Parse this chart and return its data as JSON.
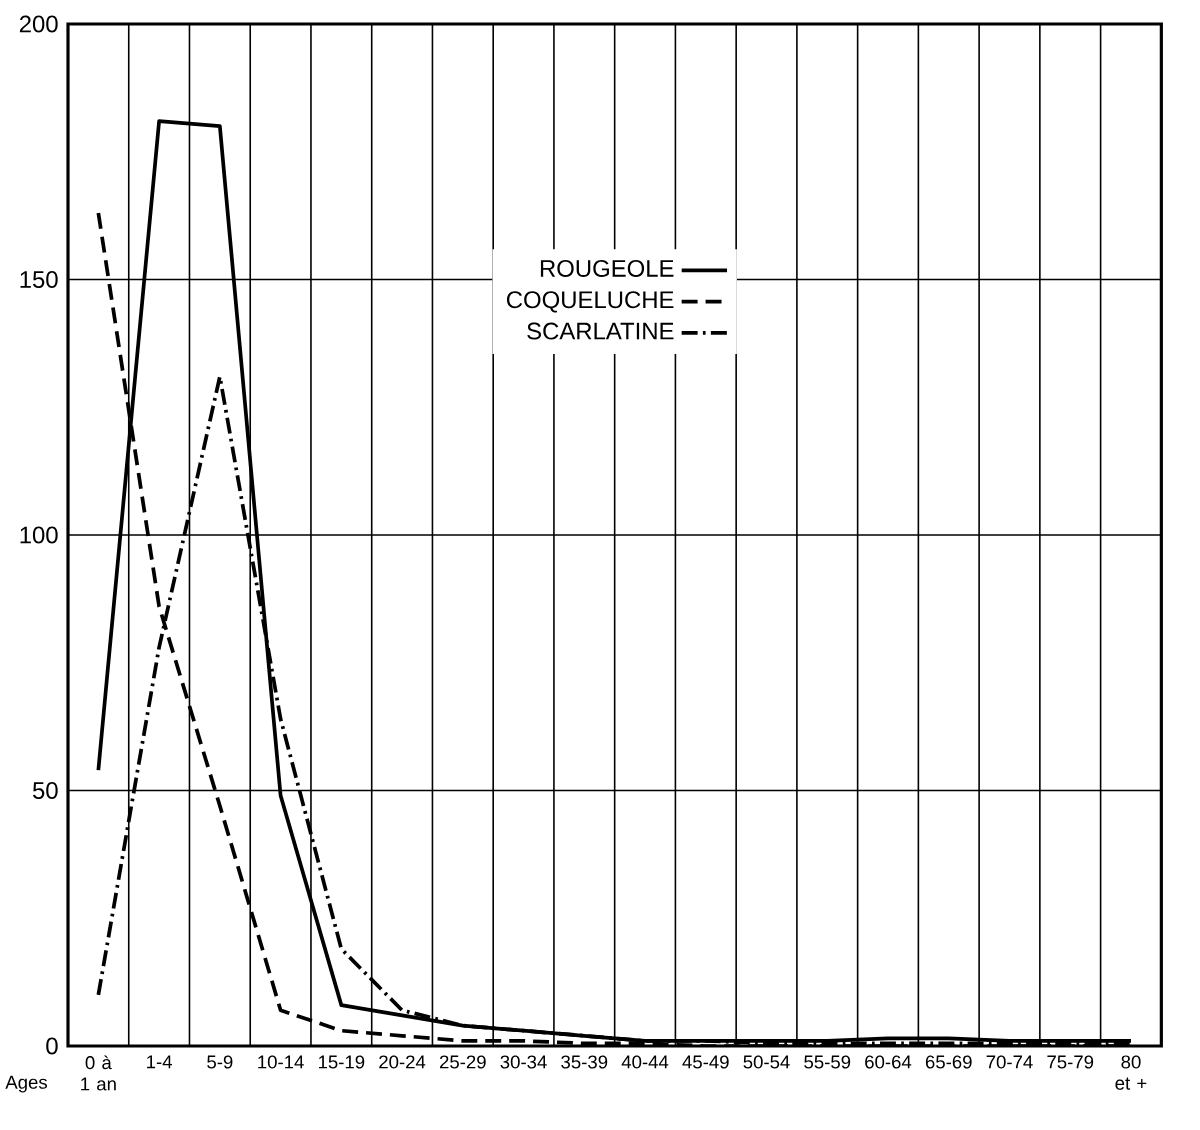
{
  "chart_data": {
    "type": "line",
    "xlabel": "Ages",
    "categories": [
      "0 à 1 an",
      "1-4",
      "5-9",
      "10-14",
      "15-19",
      "20-24",
      "25-29",
      "30-34",
      "35-39",
      "40-44",
      "45-49",
      "50-54",
      "55-59",
      "60-64",
      "65-69",
      "70-74",
      "75-79",
      "80 et +"
    ],
    "series": [
      {
        "name": "ROUGEOLE",
        "color": "#000000",
        "line_style": "solid",
        "values": [
          54,
          181,
          180,
          49,
          8,
          6,
          4,
          3,
          2,
          1,
          1,
          1,
          1,
          1.5,
          1.5,
          1,
          1,
          1
        ]
      },
      {
        "name": "COQUELUCHE",
        "color": "#000000",
        "line_style": "dashed",
        "values": [
          163,
          86,
          47,
          7,
          3,
          2,
          1,
          1,
          0.5,
          0.5,
          0,
          0,
          0,
          0,
          0,
          0,
          0,
          0
        ]
      },
      {
        "name": "SCARLATINE",
        "color": "#000000",
        "line_style": "dashdot",
        "values": [
          10,
          78,
          131,
          64,
          19,
          7,
          4,
          3,
          2,
          1,
          1,
          0.5,
          0.5,
          0.5,
          0.5,
          0.5,
          0.5,
          0.5
        ]
      }
    ],
    "ylim": [
      0,
      200
    ],
    "yticks": [
      0,
      50,
      100,
      150,
      200
    ],
    "grid": true,
    "legend": "top",
    "marker": "none"
  }
}
